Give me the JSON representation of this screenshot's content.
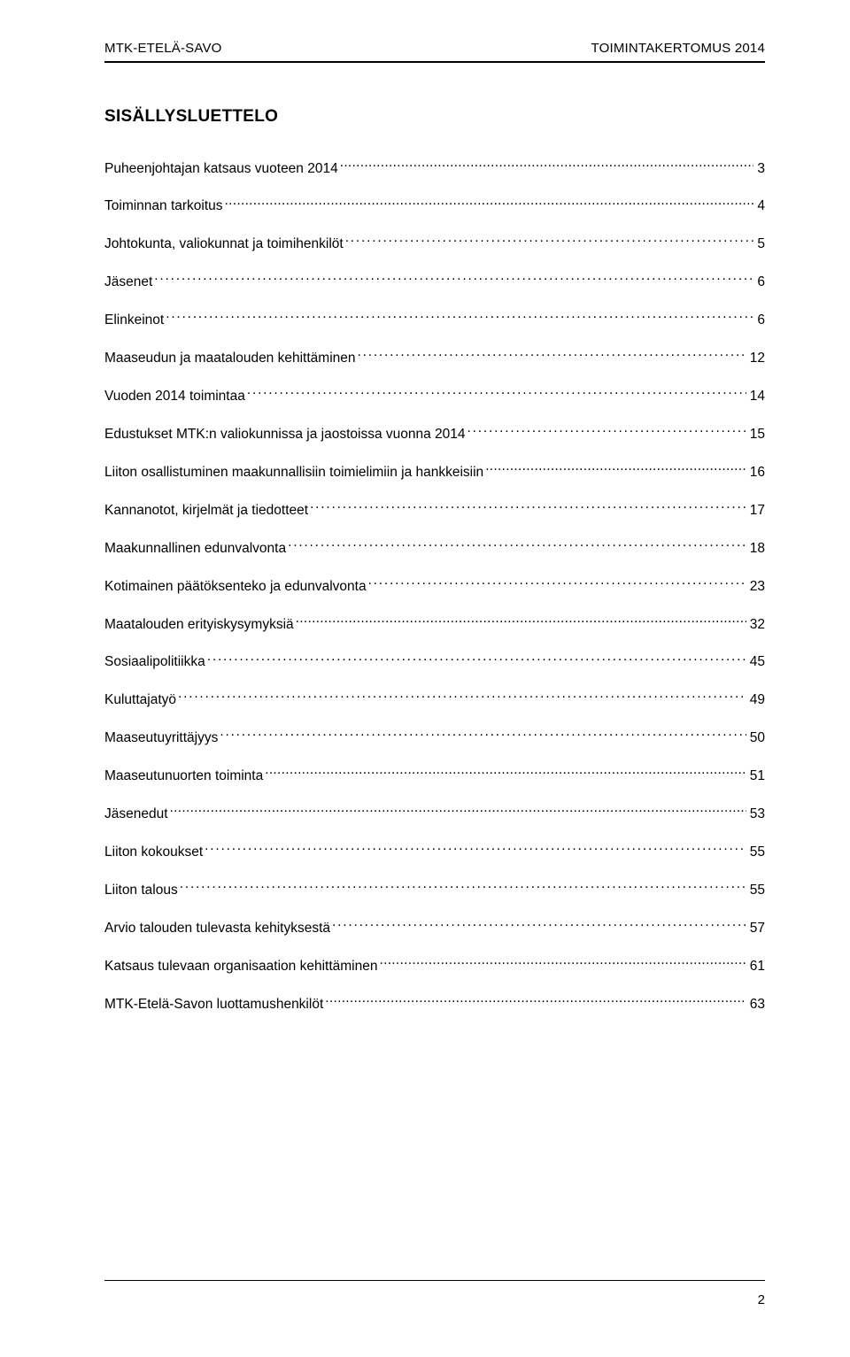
{
  "header": {
    "left": "MTK-ETELÄ-SAVO",
    "right": "TOIMINTAKERTOMUS 2014"
  },
  "title": "SISÄLLYSLUETTELO",
  "toc": [
    {
      "label": "Puheenjohtajan katsaus vuoteen 2014",
      "page": "3",
      "leader": "dense"
    },
    {
      "label": "Toiminnan tarkoitus",
      "page": "4",
      "leader": "dense"
    },
    {
      "label": "Johtokunta, valiokunnat ja toimihenkilöt",
      "page": "5",
      "leader": "sparse"
    },
    {
      "label": "Jäsenet",
      "page": "6",
      "leader": "sparse"
    },
    {
      "label": "Elinkeinot",
      "page": "6",
      "leader": "sparse"
    },
    {
      "label": "Maaseudun ja maatalouden kehittäminen",
      "page": "12",
      "leader": "sparse"
    },
    {
      "label": "Vuoden 2014 toimintaa",
      "page": "14",
      "leader": "sparse"
    },
    {
      "label": "Edustukset MTK:n valiokunnissa ja jaostoissa vuonna 2014",
      "page": "15",
      "leader": "sparse"
    },
    {
      "label": "Liiton osallistuminen maakunnallisiin toimielimiin ja hankkeisiin",
      "page": "16",
      "leader": "dense"
    },
    {
      "label": "Kannanotot, kirjelmät ja tiedotteet",
      "page": "17",
      "leader": "sparse"
    },
    {
      "label": "Maakunnallinen edunvalvonta",
      "page": "18",
      "leader": "sparse"
    },
    {
      "label": "Kotimainen päätöksenteko ja edunvalvonta",
      "page": "23",
      "leader": "sparse"
    },
    {
      "label": "Maatalouden erityiskysymyksiä",
      "page": "32",
      "leader": "dense"
    },
    {
      "label": "Sosiaalipolitiikka",
      "page": "45",
      "leader": "sparse"
    },
    {
      "label": "Kuluttajatyö",
      "page": "49",
      "leader": "sparse"
    },
    {
      "label": "Maaseutuyrittäjyys",
      "page": "50",
      "leader": "sparse"
    },
    {
      "label": "Maaseutunuorten toiminta",
      "page": "51",
      "leader": "dense"
    },
    {
      "label": "Jäsenedut",
      "page": "53",
      "leader": "dense"
    },
    {
      "label": "Liiton kokoukset",
      "page": "55",
      "leader": "sparse"
    },
    {
      "label": "Liiton talous",
      "page": "55",
      "leader": "sparse"
    },
    {
      "label": "Arvio talouden tulevasta kehityksestä",
      "page": "57",
      "leader": "sparse"
    },
    {
      "label": "Katsaus tulevaan organisaation kehittäminen",
      "page": "61",
      "leader": "dense"
    },
    {
      "label": "MTK-Etelä-Savon luottamushenkilöt",
      "page": "63",
      "leader": "dense"
    }
  ],
  "page_number": "2",
  "colors": {
    "text": "#000000",
    "background": "#ffffff",
    "rule": "#000000"
  }
}
